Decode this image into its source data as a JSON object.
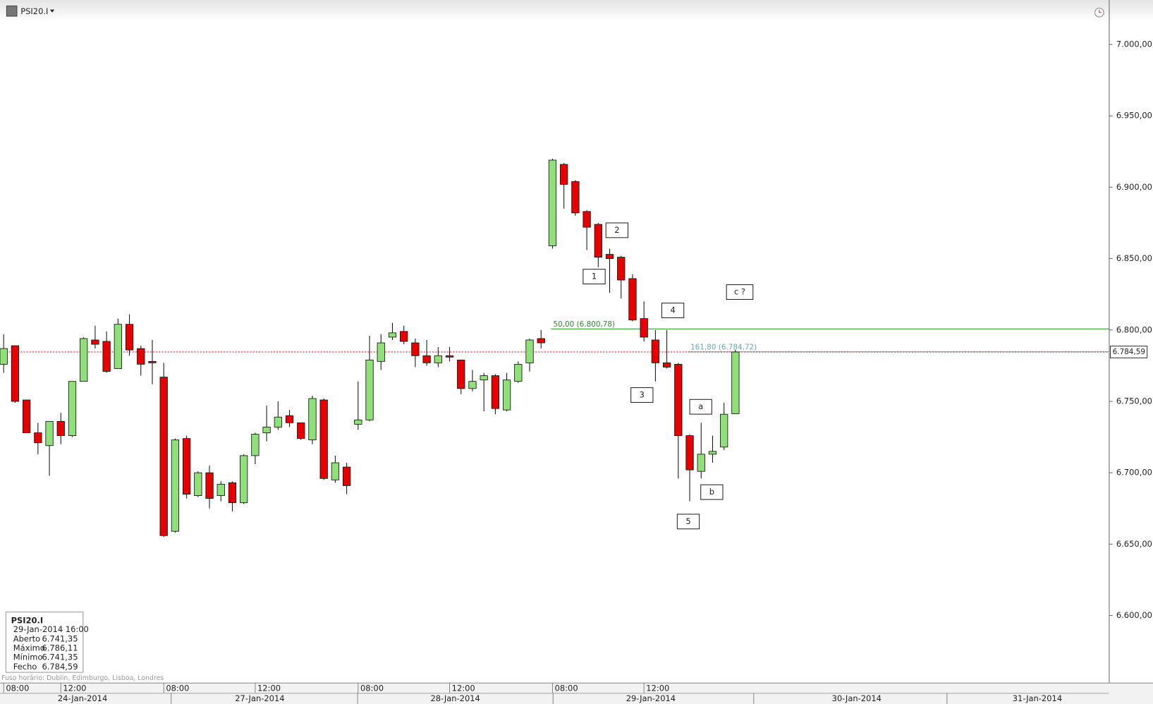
{
  "chart_data": {
    "type": "candlestick",
    "title": "PSI20.I",
    "x": [
      0,
      1,
      2,
      3,
      4,
      5,
      6,
      7,
      8,
      9,
      10,
      11,
      12,
      13,
      14,
      15,
      16,
      17,
      18,
      19,
      20,
      21,
      22,
      23,
      24,
      25,
      26,
      27,
      28,
      29,
      30,
      31,
      32,
      33,
      34,
      35,
      36,
      37,
      38,
      39,
      40,
      41,
      42,
      43,
      44,
      45,
      46,
      47,
      48,
      49,
      50,
      51,
      52,
      53,
      54,
      55,
      56,
      57,
      58,
      59,
      60,
      61,
      62,
      63,
      64
    ],
    "open": [
      6776,
      6789,
      6751,
      6728,
      6719,
      6736,
      6726,
      6764,
      6793,
      6792,
      6773,
      6804,
      6787,
      6778,
      6767,
      6659,
      6724,
      6684,
      6700,
      6684,
      6693,
      6679,
      6712,
      6728,
      6732,
      6740,
      6735,
      6723,
      6751,
      6695,
      6704,
      6734,
      6737,
      6778,
      6795,
      6799,
      6791,
      6782,
      6777,
      6782,
      6779,
      6759,
      6765,
      6768,
      6744,
      6764,
      6777,
      6794,
      6859,
      6916,
      6904,
      6883,
      6874,
      6853,
      6851,
      6836,
      6808,
      6793,
      6777,
      6776,
      6726,
      6701,
      6713,
      6718,
      6741.35
    ],
    "high": [
      6797,
      6789,
      6751,
      6735,
      6736,
      6742,
      6764,
      6795,
      6803,
      6799,
      6808,
      6811,
      6789,
      6793,
      6777,
      6724,
      6726,
      6701,
      6705,
      6694,
      6694,
      6713,
      6728,
      6747,
      6750,
      6744,
      6735,
      6754,
      6752,
      6712,
      6707,
      6764,
      6796,
      6797,
      6805,
      6803,
      6794,
      6793,
      6788,
      6788,
      6779,
      6772,
      6770,
      6769,
      6770,
      6778,
      6794,
      6800,
      6920,
      6917,
      6905,
      6884,
      6875,
      6857,
      6852,
      6839,
      6820,
      6800,
      6800,
      6777,
      6727,
      6735,
      6726,
      6749,
      6786.11
    ],
    "low": [
      6770,
      6749,
      6728,
      6713,
      6698,
      6720,
      6725,
      6764,
      6787,
      6770,
      6773,
      6782,
      6768,
      6762,
      6655,
      6658,
      6682,
      6683,
      6675,
      6680,
      6673,
      6678,
      6706,
      6722,
      6730,
      6732,
      6723,
      6720,
      6695,
      6693,
      6685,
      6730,
      6736,
      6772,
      6793,
      6790,
      6774,
      6775,
      6774,
      6778,
      6755,
      6757,
      6743,
      6741,
      6743,
      6763,
      6771,
      6787,
      6857,
      6885,
      6880,
      6856,
      6844,
      6826,
      6822,
      6806,
      6792,
      6764,
      6773,
      6696,
      6680,
      6696,
      6707,
      6716,
      6741.35
    ],
    "close": [
      6787,
      6750,
      6728,
      6721,
      6736,
      6726,
      6764,
      6794,
      6790,
      6771,
      6804,
      6786,
      6776,
      6777,
      6656,
      6723,
      6685,
      6700,
      6682,
      6692,
      6679,
      6712,
      6727,
      6732,
      6739,
      6735,
      6724,
      6752,
      6696,
      6707,
      6691,
      6737,
      6779,
      6791,
      6798,
      6792,
      6782,
      6777,
      6782,
      6781,
      6759,
      6764,
      6768,
      6745,
      6765,
      6776,
      6793,
      6791,
      6919,
      6902,
      6882,
      6872,
      6851,
      6850,
      6835,
      6807,
      6795,
      6777,
      6774,
      6726,
      6702,
      6713,
      6715,
      6741,
      6784.59
    ],
    "up_color": "#8fe07a",
    "down_color": "#e60000",
    "xlim": [
      -0.32,
      96.66
    ],
    "ylim": [
      6553,
      7027
    ],
    "yticks": [
      {
        "value": 6600,
        "label": "6.600,00"
      },
      {
        "value": 6650,
        "label": "6.650,00"
      },
      {
        "value": 6700,
        "label": "6.700,00"
      },
      {
        "value": 6750,
        "label": "6.750,00"
      },
      {
        "value": 6800,
        "label": "6.800,00"
      },
      {
        "value": 6850,
        "label": "6.850,00"
      },
      {
        "value": 6900,
        "label": "6.900,00"
      },
      {
        "value": 6950,
        "label": "6.950,00"
      },
      {
        "value": 7000,
        "label": "7.000,00"
      }
    ],
    "xticks": [
      {
        "value": 0,
        "label": "08:00"
      },
      {
        "value": 5,
        "label": "12:00"
      },
      {
        "value": 14,
        "label": "08:00"
      },
      {
        "value": 22,
        "label": "12:00"
      },
      {
        "value": 31,
        "label": "08:00"
      },
      {
        "value": 39,
        "label": "12:00"
      },
      {
        "value": 48,
        "label": "08:00"
      },
      {
        "value": 56,
        "label": "12:00"
      }
    ],
    "date_ticks": [
      {
        "value": 6.9,
        "label": "24-Jan-2014"
      },
      {
        "value": 22.4,
        "label": "27-Jan-2014"
      },
      {
        "value": 39.5,
        "label": "28-Jan-2014"
      },
      {
        "value": 56.6,
        "label": "29-Jan-2014"
      },
      {
        "value": 74.6,
        "label": "30-Jan-2014"
      },
      {
        "value": 90.4,
        "label": "31-Jan-2014"
      }
    ],
    "levels": [
      {
        "label": "50,00 (6.800,78)",
        "value": 6800.78,
        "color": "#2a8a2a"
      },
      {
        "label": "161,80 (6.784,72)",
        "value": 6784.72,
        "color": "#6aa6b0"
      }
    ],
    "last_price": {
      "value": 6784.59,
      "label": "6.784,59",
      "color": "#e60000"
    },
    "annotations": [
      "1",
      "2",
      "3",
      "4",
      "5",
      "a",
      "b",
      "c ?"
    ],
    "info_box": {
      "title": "PSI20.I",
      "datetime": "29-Jan-2014 16:00",
      "rows": [
        [
          "Aberto",
          "6.741,35"
        ],
        [
          "Máximo",
          "6.786,11"
        ],
        [
          "Mínimo",
          "6.741,35"
        ],
        [
          "Fecho",
          "6.784,59"
        ]
      ]
    },
    "timezone": "Fuso horário: Dublin, Edimburgo, Lisboa, Londres"
  }
}
